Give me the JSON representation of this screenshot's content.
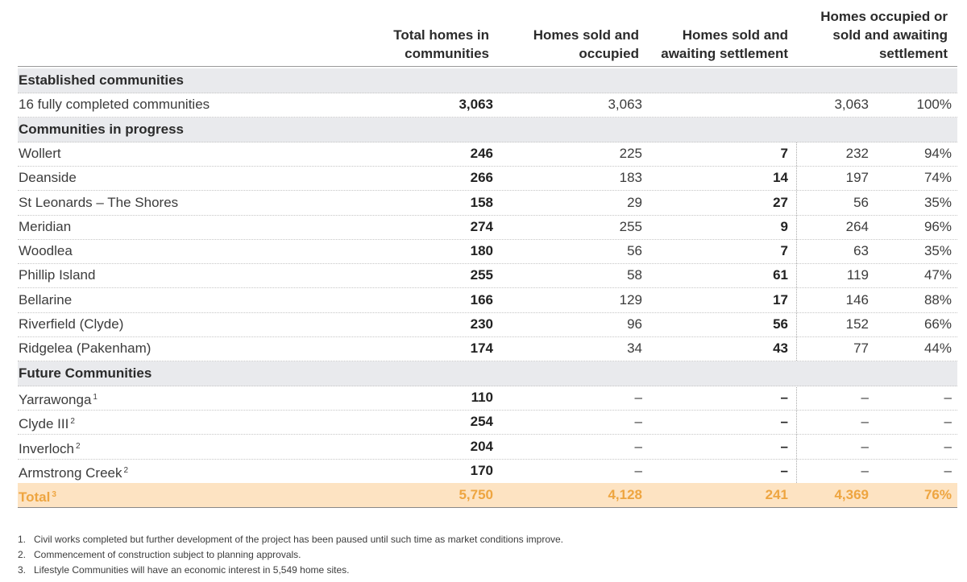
{
  "table": {
    "headers": [
      "Total homes in communities",
      "Homes sold and occupied",
      "Homes sold and awaiting settlement",
      "Homes occupied or sold and awaiting settlement"
    ],
    "sections": [
      {
        "title": "Established communities",
        "rows": [
          {
            "name": "16 fully completed communities",
            "total": "3,063",
            "occupied": "3,063",
            "combined": "3,063",
            "pct": "100%"
          }
        ]
      },
      {
        "title": "Communities in progress",
        "rows": [
          {
            "name": "Wollert",
            "total": "246",
            "occupied": "225",
            "awaiting": "7",
            "combined": "232",
            "pct": "94%"
          },
          {
            "name": "Deanside",
            "total": "266",
            "occupied": "183",
            "awaiting": "14",
            "combined": "197",
            "pct": "74%"
          },
          {
            "name": "St Leonards – The Shores",
            "total": "158",
            "occupied": "29",
            "awaiting": "27",
            "combined": "56",
            "pct": "35%"
          },
          {
            "name": "Meridian",
            "total": "274",
            "occupied": "255",
            "awaiting": "9",
            "combined": "264",
            "pct": "96%"
          },
          {
            "name": "Woodlea",
            "total": "180",
            "occupied": "56",
            "awaiting": "7",
            "combined": "63",
            "pct": "35%"
          },
          {
            "name": "Phillip Island",
            "total": "255",
            "occupied": "58",
            "awaiting": "61",
            "combined": "119",
            "pct": "47%"
          },
          {
            "name": "Bellarine",
            "total": "166",
            "occupied": "129",
            "awaiting": "17",
            "combined": "146",
            "pct": "88%"
          },
          {
            "name": "Riverfield (Clyde)",
            "total": "230",
            "occupied": "96",
            "awaiting": "56",
            "combined": "152",
            "pct": "66%"
          },
          {
            "name": "Ridgelea (Pakenham)",
            "total": "174",
            "occupied": "34",
            "awaiting": "43",
            "combined": "77",
            "pct": "44%"
          }
        ]
      },
      {
        "title": "Future Communities",
        "rows": [
          {
            "name": "Yarrawonga",
            "note": "1",
            "total": "110",
            "occupied": "–",
            "awaiting": "–",
            "combined": "–",
            "pct": "–"
          },
          {
            "name": "Clyde III",
            "note": "2",
            "total": "254",
            "occupied": "–",
            "awaiting": "–",
            "combined": "–",
            "pct": "–"
          },
          {
            "name": "Inverloch",
            "note": "2",
            "total": "204",
            "occupied": "–",
            "awaiting": "–",
            "combined": "–",
            "pct": "–"
          },
          {
            "name": "Armstrong Creek",
            "note": "2",
            "total": "170",
            "occupied": "–",
            "awaiting": "–",
            "combined": "–",
            "pct": "–"
          }
        ]
      }
    ],
    "total": {
      "name": "Total",
      "note": "3",
      "total": "5,750",
      "occupied": "4,128",
      "awaiting": "241",
      "combined": "4,369",
      "pct": "76%"
    }
  },
  "footnotes": [
    {
      "number": "1.",
      "text": "Civil works completed but further development of the project has been paused until such time as market conditions improve."
    },
    {
      "number": "2.",
      "text": "Commencement of construction subject to planning approvals."
    },
    {
      "number": "3.",
      "text": "Lifestyle Communities will have an economic interest in 5,549 home sites."
    }
  ]
}
